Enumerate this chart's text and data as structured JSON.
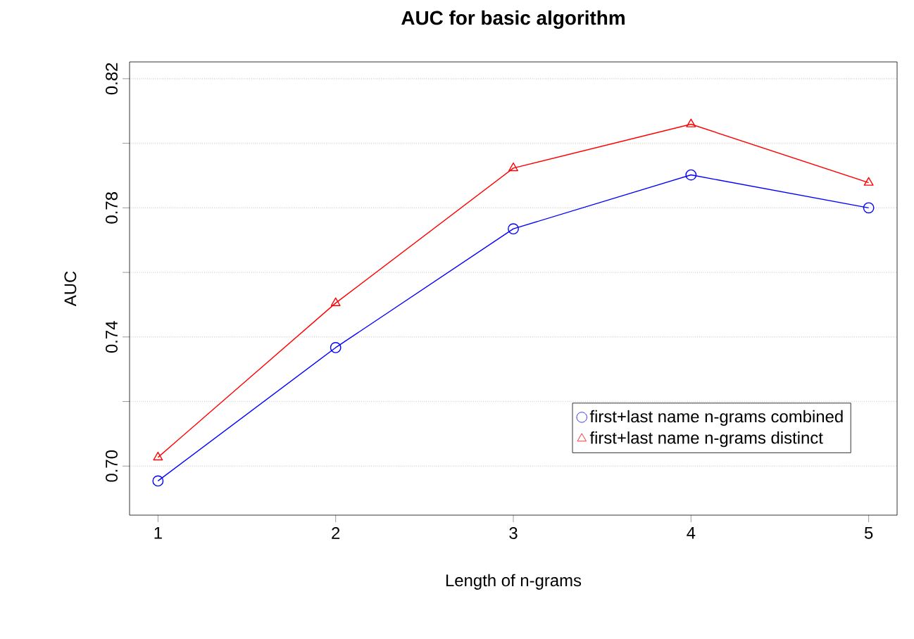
{
  "chart_data": {
    "type": "line",
    "title": "AUC for basic algorithm",
    "xlabel": "Length of n-grams",
    "ylabel": "AUC",
    "x": [
      1,
      2,
      3,
      4,
      5
    ],
    "series": [
      {
        "name": "first+last name n-grams combined",
        "color": "#0000ff",
        "marker": "circle",
        "values": [
          0.6954,
          0.7367,
          0.7735,
          0.7902,
          0.78
        ]
      },
      {
        "name": "first+last name n-grams distinct",
        "color": "#ff0000",
        "marker": "triangle",
        "values": [
          0.7027,
          0.7505,
          0.7923,
          0.8059,
          0.7878
        ]
      }
    ],
    "xlim": [
      0.84,
      5.16
    ],
    "xticks": [
      1,
      2,
      3,
      4,
      5
    ],
    "ylim": [
      0.6848,
      0.8252
    ],
    "yticks": [
      {
        "value": 0.7,
        "label": "0.70"
      },
      {
        "value": 0.72,
        "label": null
      },
      0.74,
      {
        "value": 0.76,
        "label": null
      },
      0.78,
      {
        "value": 0.8,
        "label": null
      },
      0.82
    ],
    "grid": "y",
    "legend": "bottom right",
    "line_style": "solid"
  }
}
